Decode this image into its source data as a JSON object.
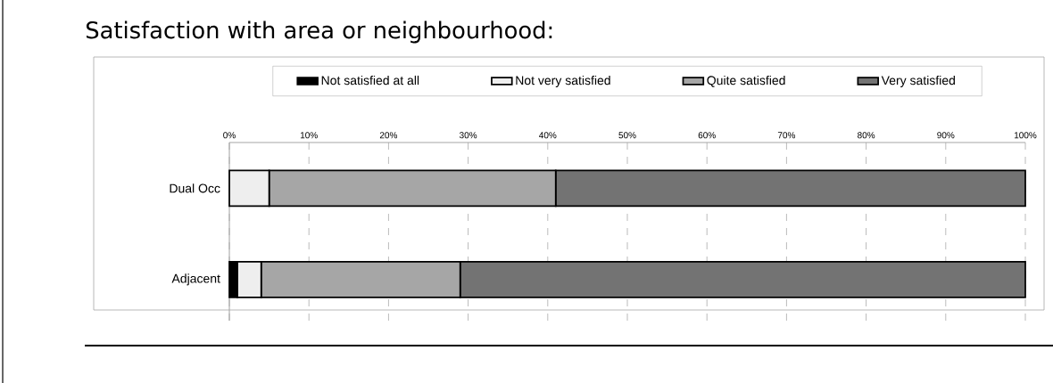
{
  "chart_data": {
    "type": "bar",
    "orientation": "horizontal",
    "stacked": true,
    "title": "Satisfaction with area or neighbourhood:",
    "categories": [
      "Dual Occ",
      "Adjacent"
    ],
    "series": [
      {
        "name": "Not satisfied at all",
        "color": "#000000",
        "values": [
          0,
          1
        ]
      },
      {
        "name": "Not very satisfied",
        "color": "#eeeeee",
        "values": [
          5,
          3
        ]
      },
      {
        "name": "Quite satisfied",
        "color": "#a6a6a6",
        "values": [
          36,
          25
        ]
      },
      {
        "name": "Very satisfied",
        "color": "#737373",
        "values": [
          59,
          71
        ]
      }
    ],
    "xlim": [
      0,
      100
    ],
    "xticks": [
      {
        "value": 0,
        "label": "0%"
      },
      {
        "value": 10,
        "label": "10%"
      },
      {
        "value": 20,
        "label": "20%"
      },
      {
        "value": 30,
        "label": "30%"
      },
      {
        "value": 40,
        "label": "40%"
      },
      {
        "value": 50,
        "label": "50%"
      },
      {
        "value": 60,
        "label": "60%"
      },
      {
        "value": 70,
        "label": "70%"
      },
      {
        "value": 80,
        "label": "80%"
      },
      {
        "value": 90,
        "label": "90%"
      },
      {
        "value": 100,
        "label": "100%"
      }
    ],
    "grid": "x",
    "legend": "top"
  }
}
